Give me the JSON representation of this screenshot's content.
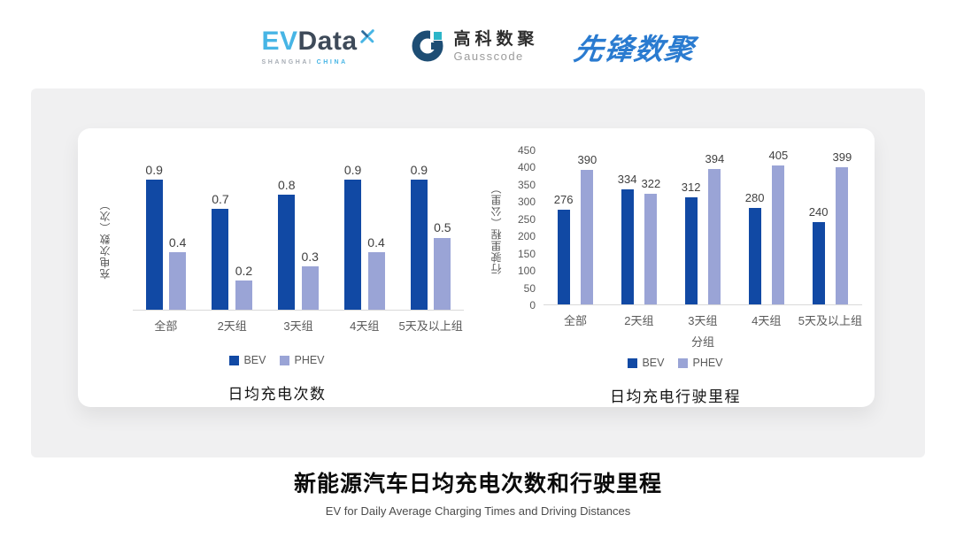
{
  "header": {
    "evdata": {
      "ev": "EV",
      "data": "Data",
      "sub_shanghai": "SHANGHAI",
      "sub_china": "CHINA"
    },
    "gausscode": {
      "cn": "高科数聚",
      "en": "Gausscode"
    },
    "xianfeng": "先锋数聚"
  },
  "colors": {
    "bev": "#1149A4",
    "phev": "#9AA4D6",
    "axis_text": "#595959",
    "baseline": "#d9d9d9"
  },
  "chart_data": [
    {
      "type": "bar",
      "title": "日均充电次数",
      "ylabel": "充电次数（次）",
      "xlabel": "",
      "categories": [
        "全部",
        "2天组",
        "3天组",
        "4天组",
        "5天及以上组"
      ],
      "series": [
        {
          "name": "BEV",
          "values": [
            0.9,
            0.7,
            0.8,
            0.9,
            0.9
          ]
        },
        {
          "name": "PHEV",
          "values": [
            0.4,
            0.2,
            0.3,
            0.4,
            0.5
          ]
        }
      ],
      "ylim": [
        0,
        1
      ],
      "yticks": [],
      "legend": [
        "BEV",
        "PHEV"
      ],
      "legend_position": "bottom",
      "grid": false,
      "value_labels": true
    },
    {
      "type": "bar",
      "title": "日均充电行驶里程",
      "ylabel": "行驶里程（公里）",
      "xlabel": "分组",
      "categories": [
        "全部",
        "2天组",
        "3天组",
        "4天组",
        "5天及以上组"
      ],
      "series": [
        {
          "name": "BEV",
          "values": [
            276,
            334,
            312,
            280,
            240
          ]
        },
        {
          "name": "PHEV",
          "values": [
            390,
            322,
            394,
            405,
            399
          ]
        }
      ],
      "ylim": [
        0,
        450
      ],
      "yticks": [
        450,
        400,
        350,
        300,
        250,
        200,
        150,
        100,
        50,
        0
      ],
      "legend": [
        "BEV",
        "PHEV"
      ],
      "legend_position": "bottom",
      "grid": false,
      "value_labels": true
    }
  ],
  "footer": {
    "title": "新能源汽车日均充电次数和行驶里程",
    "subtitle": "EV for Daily Average Charging Times and Driving Distances"
  }
}
